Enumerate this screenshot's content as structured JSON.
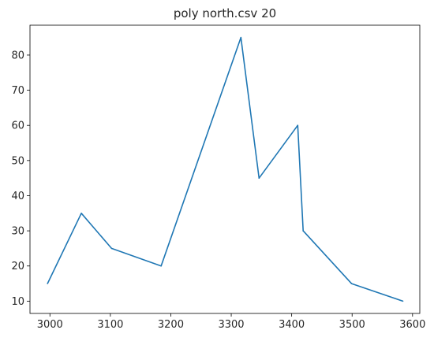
{
  "chart_data": {
    "type": "line",
    "title": "poly north.csv 20",
    "xlabel": "",
    "ylabel": "",
    "xlim": [
      2967,
      3612
    ],
    "ylim": [
      6.5,
      88.5
    ],
    "xticks": [
      3000,
      3100,
      3200,
      3300,
      3400,
      3500,
      3600
    ],
    "yticks": [
      10,
      20,
      30,
      40,
      50,
      60,
      70,
      80
    ],
    "grid": false,
    "series": [
      {
        "color": "#1f77b4",
        "points": [
          {
            "x": 2996,
            "y": 15
          },
          {
            "x": 3052,
            "y": 35
          },
          {
            "x": 3102,
            "y": 25
          },
          {
            "x": 3184,
            "y": 20
          },
          {
            "x": 3316,
            "y": 85
          },
          {
            "x": 3346,
            "y": 45
          },
          {
            "x": 3410,
            "y": 60
          },
          {
            "x": 3419,
            "y": 30
          },
          {
            "x": 3499,
            "y": 15
          },
          {
            "x": 3584,
            "y": 10
          }
        ]
      }
    ]
  }
}
